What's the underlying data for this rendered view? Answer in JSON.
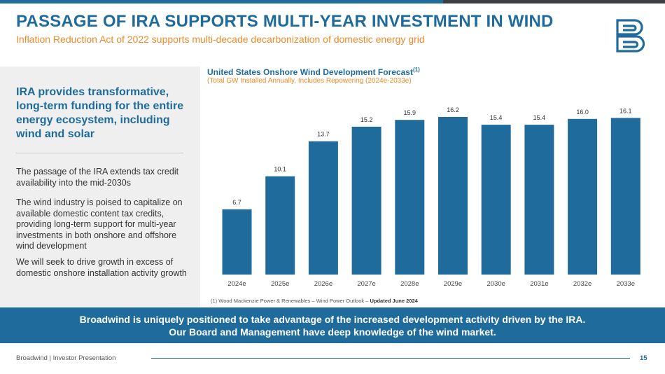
{
  "header": {
    "title": "PASSAGE OF IRA SUPPORTS MULTI-YEAR INVESTMENT IN WIND",
    "subtitle": "Inflation Reduction Act of 2022 supports multi-decade decarbonization of domestic energy grid"
  },
  "colors": {
    "brand_blue": "#1e6b9c",
    "accent_orange": "#ef8a28",
    "panel_gray": "#efefef"
  },
  "left_panel": {
    "heading": "IRA provides transformative, long-term funding for the entire energy ecosystem, including wind and solar",
    "paragraphs": [
      "The passage of the IRA extends tax credit availability into the mid-2030s",
      "The wind industry is poised to capitalize on available domestic content tax credits, providing long-term support for multi-year investments in both onshore and offshore wind development",
      "We will seek to drive growth in excess of domestic onshore installation activity growth"
    ]
  },
  "chart_data": {
    "type": "bar",
    "title": "United States Onshore Wind Development Forecast",
    "title_superscript": "(1)",
    "subtitle": "(Total GW Installed Annually, Includes Repowering (2024e-2033e)",
    "categories": [
      "2024e",
      "2025e",
      "2026e",
      "2027e",
      "2028e",
      "2029e",
      "2030e",
      "2031e",
      "2032e",
      "2033e"
    ],
    "values": [
      6.7,
      10.1,
      13.7,
      15.2,
      15.9,
      16.2,
      15.4,
      15.4,
      16.0,
      16.1
    ],
    "data_labels": [
      "6.7",
      "10.1",
      "13.7",
      "15.2",
      "15.9",
      "16.2",
      "15.4",
      "15.4",
      "16.0",
      "16.1"
    ],
    "ylim": [
      0,
      16.2
    ],
    "bar_color": "#1e6b9c",
    "xlabel": "",
    "ylabel": "",
    "grid": false
  },
  "footnote": {
    "text": "(1) Wood Mackenzie Power & Renewables – Wind Power Outlook – ",
    "bold": "Updated June 2024"
  },
  "banner": {
    "line1": "Broadwind is uniquely positioned to take advantage of the increased development activity driven by the IRA.",
    "line2": "Our Board and Management have deep knowledge of the wind market."
  },
  "footer": {
    "text": "Broadwind | Investor Presentation",
    "page": "15"
  }
}
